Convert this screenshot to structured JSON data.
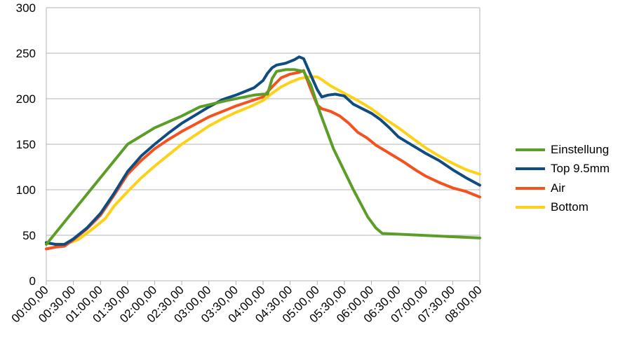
{
  "chart_data": {
    "type": "line",
    "title": "",
    "xlabel": "",
    "ylabel": "",
    "ylim": [
      0,
      300
    ],
    "yticks": [
      0,
      50,
      100,
      150,
      200,
      250,
      300
    ],
    "xlim": [
      0,
      480
    ],
    "x_unit": "minutes",
    "xtick_labels": [
      "00:00,00",
      "00:30,00",
      "01:00,00",
      "01:30,00",
      "02:00,00",
      "02:30,00",
      "03:00,00",
      "03:30,00",
      "04:00,00",
      "04:30,00",
      "05:00,00",
      "05:30,00",
      "06:00,00",
      "06:30,00",
      "07:00,00",
      "07:30,00",
      "08:00,00"
    ],
    "grid": "horizontal",
    "legend_position": "right",
    "series": [
      {
        "name": "Einstellung",
        "color": "#5a9e27",
        "points": [
          [
            0,
            40
          ],
          [
            90,
            150
          ],
          [
            120,
            168
          ],
          [
            150,
            181
          ],
          [
            170,
            191
          ],
          [
            200,
            198
          ],
          [
            230,
            204
          ],
          [
            240,
            205
          ],
          [
            245,
            205
          ],
          [
            250,
            222
          ],
          [
            255,
            230
          ],
          [
            265,
            232
          ],
          [
            275,
            232
          ],
          [
            285,
            230
          ],
          [
            293,
            215
          ],
          [
            303,
            185
          ],
          [
            318,
            145
          ],
          [
            340,
            100
          ],
          [
            356,
            70
          ],
          [
            365,
            58
          ],
          [
            372,
            52
          ],
          [
            480,
            47
          ]
        ]
      },
      {
        "name": "Top 9.5mm",
        "color": "#0f4c81",
        "points": [
          [
            0,
            42
          ],
          [
            10,
            40
          ],
          [
            20,
            40
          ],
          [
            30,
            46
          ],
          [
            45,
            58
          ],
          [
            60,
            74
          ],
          [
            75,
            96
          ],
          [
            90,
            120
          ],
          [
            105,
            137
          ],
          [
            120,
            150
          ],
          [
            135,
            162
          ],
          [
            150,
            173
          ],
          [
            165,
            182
          ],
          [
            180,
            191
          ],
          [
            195,
            199
          ],
          [
            210,
            204
          ],
          [
            220,
            208
          ],
          [
            230,
            212
          ],
          [
            240,
            220
          ],
          [
            245,
            228
          ],
          [
            250,
            234
          ],
          [
            255,
            237
          ],
          [
            265,
            239
          ],
          [
            275,
            243
          ],
          [
            280,
            246
          ],
          [
            285,
            244
          ],
          [
            292,
            228
          ],
          [
            300,
            210
          ],
          [
            305,
            202
          ],
          [
            312,
            204
          ],
          [
            320,
            205
          ],
          [
            330,
            203
          ],
          [
            340,
            194
          ],
          [
            350,
            189
          ],
          [
            360,
            184
          ],
          [
            370,
            177
          ],
          [
            380,
            168
          ],
          [
            390,
            158
          ],
          [
            400,
            152
          ],
          [
            410,
            146
          ],
          [
            420,
            140
          ],
          [
            435,
            132
          ],
          [
            450,
            122
          ],
          [
            465,
            113
          ],
          [
            480,
            105
          ]
        ]
      },
      {
        "name": "Air",
        "color": "#f4511e",
        "points": [
          [
            0,
            35
          ],
          [
            10,
            37
          ],
          [
            20,
            38
          ],
          [
            30,
            45
          ],
          [
            45,
            57
          ],
          [
            60,
            72
          ],
          [
            75,
            94
          ],
          [
            90,
            117
          ],
          [
            105,
            132
          ],
          [
            120,
            145
          ],
          [
            135,
            155
          ],
          [
            150,
            164
          ],
          [
            165,
            172
          ],
          [
            180,
            180
          ],
          [
            195,
            186
          ],
          [
            210,
            192
          ],
          [
            225,
            197
          ],
          [
            240,
            202
          ],
          [
            250,
            213
          ],
          [
            260,
            223
          ],
          [
            270,
            227
          ],
          [
            280,
            229
          ],
          [
            285,
            231
          ],
          [
            293,
            210
          ],
          [
            300,
            193
          ],
          [
            305,
            189
          ],
          [
            315,
            186
          ],
          [
            325,
            181
          ],
          [
            335,
            173
          ],
          [
            345,
            163
          ],
          [
            355,
            157
          ],
          [
            365,
            149
          ],
          [
            380,
            140
          ],
          [
            395,
            131
          ],
          [
            410,
            121
          ],
          [
            420,
            115
          ],
          [
            435,
            108
          ],
          [
            450,
            102
          ],
          [
            465,
            98
          ],
          [
            480,
            92
          ]
        ]
      },
      {
        "name": "Bottom",
        "color": "#fdd116",
        "points": [
          [
            0,
            41
          ],
          [
            20,
            40
          ],
          [
            35,
            45
          ],
          [
            50,
            56
          ],
          [
            65,
            68
          ],
          [
            75,
            82
          ],
          [
            90,
            98
          ],
          [
            105,
            113
          ],
          [
            120,
            126
          ],
          [
            135,
            138
          ],
          [
            150,
            150
          ],
          [
            165,
            160
          ],
          [
            180,
            170
          ],
          [
            195,
            178
          ],
          [
            210,
            185
          ],
          [
            225,
            191
          ],
          [
            240,
            198
          ],
          [
            250,
            206
          ],
          [
            260,
            213
          ],
          [
            270,
            218
          ],
          [
            280,
            222
          ],
          [
            290,
            224
          ],
          [
            300,
            224
          ],
          [
            305,
            221
          ],
          [
            315,
            214
          ],
          [
            330,
            206
          ],
          [
            345,
            198
          ],
          [
            360,
            189
          ],
          [
            375,
            178
          ],
          [
            390,
            168
          ],
          [
            405,
            157
          ],
          [
            420,
            146
          ],
          [
            435,
            137
          ],
          [
            450,
            129
          ],
          [
            465,
            122
          ],
          [
            480,
            117
          ]
        ]
      }
    ]
  }
}
